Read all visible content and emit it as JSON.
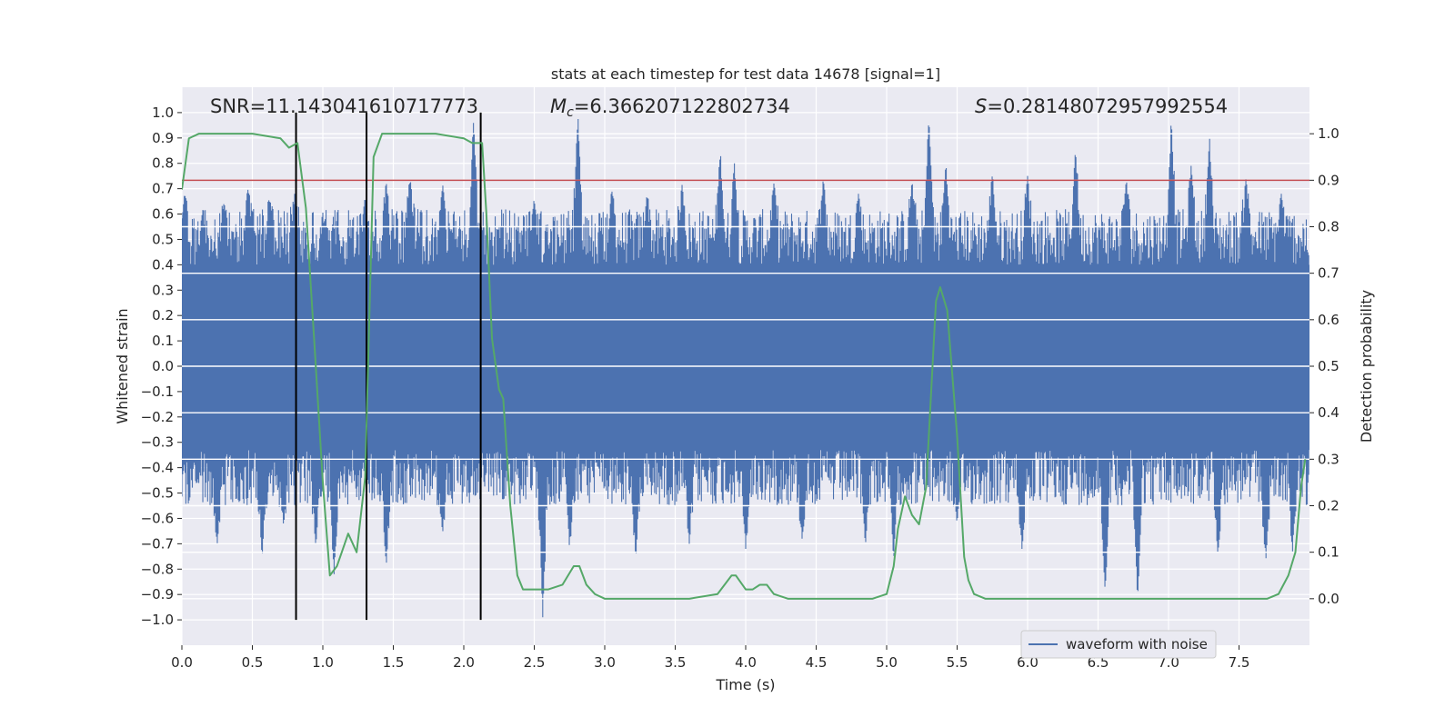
{
  "chart_data": {
    "type": "line",
    "title": "stats at each timestep for test data 14678 [signal=1]",
    "xlabel": "Time (s)",
    "ylabel_left": "Whitened strain",
    "ylabel_right": "Detection probability",
    "xlim": [
      0.0,
      8.0
    ],
    "ylim_left": [
      -1.1,
      1.1
    ],
    "ylim_right": [
      -0.1,
      1.1
    ],
    "x_ticks": [
      "0.0",
      "0.5",
      "1.0",
      "1.5",
      "2.0",
      "2.5",
      "3.0",
      "3.5",
      "4.0",
      "4.5",
      "5.0",
      "5.5",
      "6.0",
      "6.5",
      "7.0",
      "7.5"
    ],
    "y_ticks_left": [
      "1.0",
      "0.9",
      "0.8",
      "0.7",
      "0.6",
      "0.5",
      "0.4",
      "0.3",
      "0.2",
      "0.1",
      "0.0",
      "−0.1",
      "−0.2",
      "−0.3",
      "−0.4",
      "−0.5",
      "−0.6",
      "−0.7",
      "−0.8",
      "−0.9",
      "−1.0"
    ],
    "y_ticks_right": [
      "1.0",
      "0.9",
      "0.8",
      "0.7",
      "0.6",
      "0.5",
      "0.4",
      "0.3",
      "0.2",
      "0.1",
      "0.0"
    ],
    "annotations": {
      "snr": "SNR=11.143041610717773",
      "mc_symbol": "M",
      "mc_sub": "c",
      "mc_value": "=6.366207122802734",
      "s_symbol": "S",
      "s_value": "=0.28148072957992554"
    },
    "legend": {
      "label": "waveform with noise",
      "position": "lower-right"
    },
    "threshold": {
      "value": 0.9,
      "axis": "right",
      "color": "#c44e52"
    },
    "vertical_lines": [
      0.81,
      1.31,
      2.12
    ],
    "vertical_line_range": [
      -1.0,
      1.0
    ],
    "strain": {
      "name": "waveform with noise",
      "color": "#4c72b0",
      "core_band": [
        -0.33,
        0.4
      ],
      "peaks_upper": [
        [
          0.02,
          0.68
        ],
        [
          0.15,
          0.62
        ],
        [
          0.3,
          0.65
        ],
        [
          0.47,
          0.7
        ],
        [
          0.62,
          0.66
        ],
        [
          0.8,
          0.68
        ],
        [
          1.02,
          0.58
        ],
        [
          1.3,
          0.67
        ],
        [
          1.45,
          0.73
        ],
        [
          1.62,
          0.75
        ],
        [
          1.85,
          0.72
        ],
        [
          2.07,
          0.98
        ],
        [
          2.5,
          0.66
        ],
        [
          2.81,
          0.99
        ],
        [
          3.05,
          0.7
        ],
        [
          3.3,
          0.68
        ],
        [
          3.55,
          0.72
        ],
        [
          3.82,
          0.85
        ],
        [
          3.92,
          0.8
        ],
        [
          4.2,
          0.72
        ],
        [
          4.55,
          0.74
        ],
        [
          4.8,
          0.68
        ],
        [
          5.18,
          0.73
        ],
        [
          5.3,
          0.99
        ],
        [
          5.42,
          0.8
        ],
        [
          5.75,
          0.76
        ],
        [
          6.0,
          0.75
        ],
        [
          6.34,
          0.86
        ],
        [
          6.7,
          0.74
        ],
        [
          7.02,
          0.98
        ],
        [
          7.16,
          0.79
        ],
        [
          7.29,
          0.91
        ],
        [
          7.55,
          0.75
        ],
        [
          7.8,
          0.68
        ]
      ],
      "peaks_lower": [
        [
          0.25,
          -0.71
        ],
        [
          0.57,
          -0.75
        ],
        [
          0.72,
          -0.62
        ],
        [
          0.95,
          -0.71
        ],
        [
          1.08,
          -0.82
        ],
        [
          1.45,
          -0.79
        ],
        [
          1.85,
          -0.66
        ],
        [
          2.56,
          -0.99
        ],
        [
          2.75,
          -0.72
        ],
        [
          3.22,
          -0.76
        ],
        [
          3.6,
          -0.7
        ],
        [
          4.0,
          -0.72
        ],
        [
          4.4,
          -0.68
        ],
        [
          4.85,
          -0.7
        ],
        [
          5.05,
          -0.76
        ],
        [
          5.5,
          -0.62
        ],
        [
          5.96,
          -0.72
        ],
        [
          6.55,
          -0.89
        ],
        [
          6.78,
          -0.92
        ],
        [
          7.35,
          -0.74
        ],
        [
          7.69,
          -0.77
        ],
        [
          7.88,
          -0.73
        ]
      ]
    },
    "probability": {
      "name": "detection probability",
      "color": "#55a868",
      "x": [
        0.0,
        0.05,
        0.12,
        0.3,
        0.5,
        0.7,
        0.76,
        0.82,
        0.88,
        0.94,
        1.0,
        1.05,
        1.1,
        1.18,
        1.24,
        1.3,
        1.36,
        1.42,
        1.48,
        1.6,
        1.8,
        2.0,
        2.06,
        2.13,
        2.16,
        2.2,
        2.25,
        2.28,
        2.33,
        2.38,
        2.42,
        2.47,
        2.55,
        2.6,
        2.7,
        2.78,
        2.82,
        2.87,
        2.93,
        3.0,
        3.2,
        3.6,
        3.8,
        3.9,
        3.93,
        4.0,
        4.05,
        4.1,
        4.15,
        4.2,
        4.3,
        4.6,
        4.9,
        5.0,
        5.05,
        5.08,
        5.13,
        5.18,
        5.23,
        5.28,
        5.35,
        5.38,
        5.43,
        5.5,
        5.55,
        5.58,
        5.62,
        5.7,
        5.8,
        6.0,
        6.5,
        7.0,
        7.3,
        7.5,
        7.7,
        7.78,
        7.85,
        7.9,
        7.94,
        7.97
      ],
      "y": [
        0.88,
        0.99,
        1.0,
        1.0,
        1.0,
        0.99,
        0.97,
        0.98,
        0.84,
        0.55,
        0.25,
        0.05,
        0.07,
        0.14,
        0.1,
        0.26,
        0.95,
        1.0,
        1.0,
        1.0,
        1.0,
        0.99,
        0.98,
        0.98,
        0.83,
        0.56,
        0.45,
        0.43,
        0.2,
        0.05,
        0.02,
        0.02,
        0.02,
        0.02,
        0.03,
        0.07,
        0.07,
        0.03,
        0.01,
        0.0,
        0.0,
        0.0,
        0.01,
        0.05,
        0.05,
        0.02,
        0.02,
        0.03,
        0.03,
        0.01,
        0.0,
        0.0,
        0.0,
        0.01,
        0.07,
        0.15,
        0.22,
        0.18,
        0.16,
        0.24,
        0.64,
        0.67,
        0.62,
        0.35,
        0.09,
        0.04,
        0.01,
        0.0,
        0.0,
        0.0,
        0.0,
        0.0,
        0.0,
        0.0,
        0.0,
        0.01,
        0.05,
        0.1,
        0.24,
        0.3
      ]
    }
  }
}
